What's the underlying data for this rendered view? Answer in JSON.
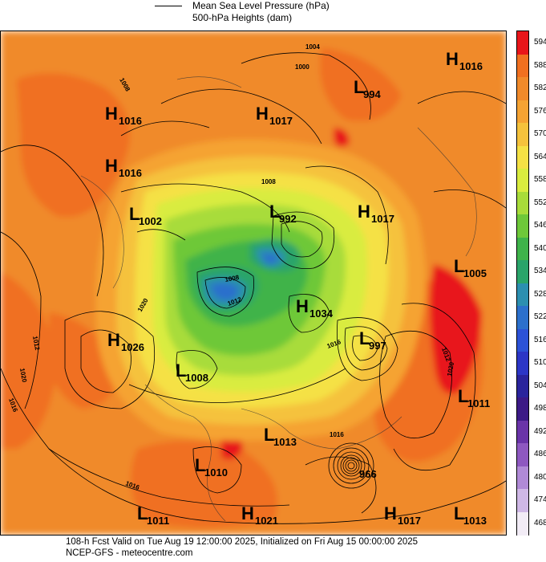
{
  "legend": {
    "mslp_label": "Mean Sea Level Pressure (hPa)",
    "heights_label": "500-hPa Heights (dam)"
  },
  "colorbar": {
    "ticks": [
      "594",
      "588",
      "582",
      "576",
      "570",
      "564",
      "558",
      "552",
      "546",
      "540",
      "534",
      "528",
      "522",
      "516",
      "510",
      "504",
      "498",
      "492",
      "486",
      "480",
      "474",
      "468"
    ],
    "colors": [
      "#e8161a",
      "#f07020",
      "#f08a2a",
      "#f5a333",
      "#f5c23c",
      "#f5e145",
      "#d9ec3f",
      "#a8dc3a",
      "#6ec839",
      "#3fb34a",
      "#2aa46a",
      "#2c8fb0",
      "#2c70cc",
      "#2c52d6",
      "#2c36c6",
      "#2a249c",
      "#3c1a86",
      "#6a34a8",
      "#8e58c0",
      "#b08ad6",
      "#cfb8e6",
      "#f2ecf6"
    ]
  },
  "pressure_systems": [
    {
      "letter": "H",
      "value": "1016"
    },
    {
      "letter": "L",
      "value": "994"
    },
    {
      "letter": "H",
      "value": "1016"
    },
    {
      "letter": "H",
      "value": "1017"
    },
    {
      "letter": "H",
      "value": "1016"
    },
    {
      "letter": "L",
      "value": "1002"
    },
    {
      "letter": "L",
      "value": "992"
    },
    {
      "letter": "H",
      "value": "1017"
    },
    {
      "letter": "L",
      "value": "1005"
    },
    {
      "letter": "H",
      "value": "1034"
    },
    {
      "letter": "H",
      "value": "1026"
    },
    {
      "letter": "L",
      "value": "997"
    },
    {
      "letter": "L",
      "value": "1008"
    },
    {
      "letter": "L",
      "value": "1011"
    },
    {
      "letter": "L",
      "value": "1013"
    },
    {
      "letter": "L",
      "value": "1010"
    },
    {
      "letter": "L",
      "value": "966"
    },
    {
      "letter": "L",
      "value": "1011"
    },
    {
      "letter": "H",
      "value": "1021"
    },
    {
      "letter": "H",
      "value": "1017"
    },
    {
      "letter": "L",
      "value": "1013"
    }
  ],
  "isobar_labels": [
    "1004",
    "1000",
    "1008",
    "1008",
    "1008",
    "1012",
    "1020",
    "1016",
    "1012",
    "1020",
    "1016",
    "1016",
    "1016",
    "1012",
    "1020"
  ],
  "footer": {
    "valid_line": "108-h Fcst Valid on Tue Aug 19 12:00:00 2025, Initialized on Fri Aug 15 00:00:00 2025",
    "source_line": "NCEP-GFS  - meteocentre.com"
  }
}
